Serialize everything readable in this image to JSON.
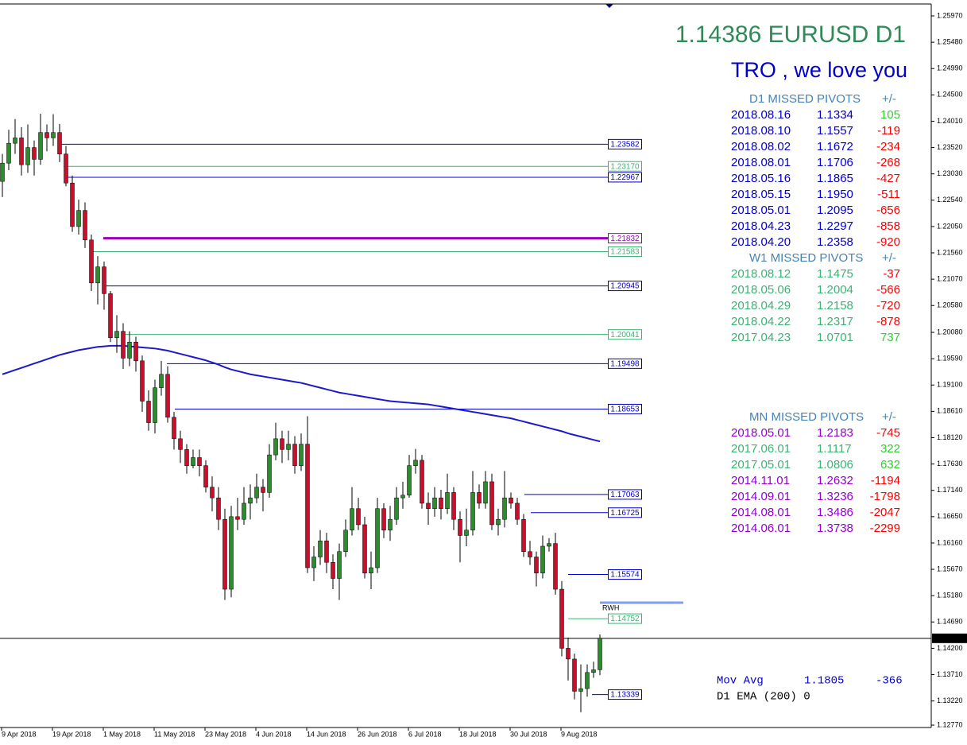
{
  "chart_data": {
    "type": "candlestick",
    "up_color": "#2e8b2e",
    "down_color": "#c8102e",
    "categories": [
      "9 Apr 2018",
      null,
      null,
      null,
      null,
      null,
      null,
      null,
      "19 Apr 2018",
      null,
      null,
      null,
      null,
      null,
      null,
      null,
      "1 May 2018",
      null,
      null,
      null,
      null,
      null,
      null,
      null,
      "11 May 2018",
      null,
      null,
      null,
      null,
      null,
      null,
      null,
      "23 May 2018",
      null,
      null,
      null,
      null,
      null,
      null,
      null,
      "4 Jun 2018",
      null,
      null,
      null,
      null,
      null,
      null,
      null,
      "14 Jun 2018",
      null,
      null,
      null,
      null,
      null,
      null,
      null,
      "26 Jun 2018",
      null,
      null,
      null,
      null,
      null,
      null,
      null,
      "6 Jul 2018",
      null,
      null,
      null,
      null,
      null,
      null,
      null,
      "18 Jul 2018",
      null,
      null,
      null,
      null,
      null,
      null,
      null,
      "30 Jul 2018",
      null,
      null,
      null,
      null,
      null,
      null,
      null,
      "9 Aug 2018",
      null,
      null,
      null,
      null,
      null,
      null
    ],
    "open": [
      1.2289,
      1.2323,
      1.236,
      1.237,
      1.232,
      1.2352,
      1.233,
      1.238,
      1.237,
      1.238,
      1.234,
      1.2286,
      1.2205,
      1.2235,
      1.218,
      1.21,
      1.213,
      1.208,
      1.1998,
      1.201,
      1.196,
      1.199,
      1.1955,
      1.188,
      1.184,
      1.1905,
      1.193,
      1.185,
      1.181,
      1.179,
      1.176,
      1.1775,
      1.176,
      1.172,
      1.17,
      1.166,
      1.153,
      1.1665,
      1.166,
      1.169,
      1.17,
      1.172,
      1.171,
      1.178,
      1.181,
      1.179,
      1.18,
      1.176,
      1.18,
      1.157,
      1.159,
      1.162,
      1.158,
      1.155,
      1.16,
      1.164,
      1.168,
      1.165,
      1.156,
      1.157,
      1.168,
      1.164,
      1.166,
      1.17,
      1.1705,
      1.176,
      1.177,
      1.169,
      1.168,
      1.17,
      1.168,
      1.171,
      1.166,
      1.163,
      1.164,
      1.171,
      1.169,
      1.173,
      1.165,
      1.166,
      1.17,
      1.169,
      1.166,
      1.16,
      1.159,
      1.156,
      1.161,
      1.1615,
      1.153,
      1.142,
      1.14,
      1.134,
      1.1345,
      1.1375,
      1.138
    ],
    "high": [
      1.234,
      1.2385,
      1.2405,
      1.239,
      1.2395,
      1.2365,
      1.2415,
      1.2395,
      1.2414,
      1.2396,
      1.2355,
      1.23,
      1.2255,
      1.225,
      1.219,
      1.215,
      1.214,
      1.2085,
      1.204,
      1.2025,
      1.201,
      1.2,
      1.1965,
      1.19,
      1.192,
      1.1955,
      1.1945,
      1.186,
      1.1825,
      1.18,
      1.179,
      1.179,
      1.177,
      1.174,
      1.172,
      1.168,
      1.1685,
      1.17,
      1.172,
      1.1725,
      1.1745,
      1.1735,
      1.18,
      1.184,
      1.1825,
      1.1825,
      1.1815,
      1.182,
      1.1852,
      1.161,
      1.164,
      1.1635,
      1.1595,
      1.1615,
      1.166,
      1.172,
      1.17,
      1.1665,
      1.16,
      1.17,
      1.169,
      1.1685,
      1.172,
      1.173,
      1.178,
      1.1791,
      1.178,
      1.171,
      1.172,
      1.1715,
      1.1745,
      1.172,
      1.1675,
      1.168,
      1.175,
      1.1725,
      1.175,
      1.1745,
      1.168,
      1.175,
      1.171,
      1.17,
      1.167,
      1.162,
      1.16,
      1.163,
      1.1625,
      1.1635,
      1.1545,
      1.144,
      1.141,
      1.139,
      1.139,
      1.1395,
      1.1446
    ],
    "low": [
      1.226,
      1.231,
      1.234,
      1.23,
      1.2305,
      1.23,
      1.232,
      1.2345,
      1.2355,
      1.2325,
      1.228,
      1.2195,
      1.219,
      1.2165,
      1.2085,
      1.206,
      1.205,
      1.199,
      1.197,
      1.194,
      1.1945,
      1.1935,
      1.186,
      1.1825,
      1.182,
      1.189,
      1.184,
      1.179,
      1.1765,
      1.1745,
      1.1755,
      1.174,
      1.171,
      1.1675,
      1.164,
      1.151,
      1.1515,
      1.164,
      1.165,
      1.166,
      1.169,
      1.1675,
      1.17,
      1.177,
      1.1765,
      1.177,
      1.1745,
      1.175,
      1.156,
      1.1545,
      1.1575,
      1.156,
      1.153,
      1.151,
      1.159,
      1.163,
      1.164,
      1.155,
      1.153,
      1.156,
      1.1625,
      1.162,
      1.165,
      1.168,
      1.17,
      1.1745,
      1.168,
      1.165,
      1.1665,
      1.166,
      1.167,
      1.164,
      1.158,
      1.161,
      1.163,
      1.168,
      1.168,
      1.164,
      1.163,
      1.1645,
      1.168,
      1.165,
      1.159,
      1.1575,
      1.1535,
      1.155,
      1.16,
      1.152,
      1.1405,
      1.136,
      1.1325,
      1.1301,
      1.133,
      1.1365,
      1.137
    ],
    "close": [
      1.2323,
      1.236,
      1.237,
      1.232,
      1.2352,
      1.233,
      1.238,
      1.237,
      1.238,
      1.234,
      1.2286,
      1.2205,
      1.2235,
      1.218,
      1.21,
      1.213,
      1.208,
      1.1998,
      1.201,
      1.196,
      1.199,
      1.1955,
      1.188,
      1.184,
      1.1905,
      1.193,
      1.185,
      1.181,
      1.179,
      1.176,
      1.1775,
      1.176,
      1.172,
      1.17,
      1.166,
      1.153,
      1.1665,
      1.166,
      1.169,
      1.17,
      1.172,
      1.171,
      1.178,
      1.181,
      1.179,
      1.18,
      1.176,
      1.18,
      1.157,
      1.159,
      1.162,
      1.158,
      1.155,
      1.16,
      1.164,
      1.168,
      1.165,
      1.156,
      1.157,
      1.168,
      1.164,
      1.166,
      1.17,
      1.1705,
      1.176,
      1.177,
      1.169,
      1.168,
      1.17,
      1.168,
      1.171,
      1.166,
      1.163,
      1.164,
      1.171,
      1.169,
      1.173,
      1.165,
      1.166,
      1.17,
      1.169,
      1.166,
      1.16,
      1.159,
      1.156,
      1.161,
      1.1615,
      1.153,
      1.142,
      1.14,
      1.134,
      1.1345,
      1.1375,
      1.138,
      1.1439
    ],
    "ma": {
      "color": "#1a1acc",
      "values": [
        1.193,
        1.1934,
        1.1938,
        1.1942,
        1.1946,
        1.195,
        1.1954,
        1.1958,
        1.1962,
        1.1966,
        1.1969,
        1.1972,
        1.1975,
        1.1977,
        1.1979,
        1.1981,
        1.1982,
        1.1983,
        1.1983,
        1.1983,
        1.1982,
        1.1981,
        1.198,
        1.1979,
        1.1978,
        1.1976,
        1.1974,
        1.1971,
        1.1968,
        1.1965,
        1.1962,
        1.1959,
        1.1956,
        1.1952,
        1.1948,
        1.1943,
        1.1939,
        1.1936,
        1.1933,
        1.193,
        1.1928,
        1.1926,
        1.1924,
        1.1922,
        1.192,
        1.1918,
        1.1916,
        1.1914,
        1.1911,
        1.1908,
        1.1905,
        1.1902,
        1.1899,
        1.1896,
        1.1894,
        1.1892,
        1.189,
        1.1888,
        1.1886,
        1.1884,
        1.1882,
        1.188,
        1.1879,
        1.1878,
        1.1877,
        1.1876,
        1.1875,
        1.1874,
        1.1872,
        1.187,
        1.1868,
        1.1866,
        1.1864,
        1.1862,
        1.186,
        1.1858,
        1.1856,
        1.1854,
        1.1852,
        1.185,
        1.1848,
        1.1845,
        1.1842,
        1.1839,
        1.1836,
        1.1833,
        1.183,
        1.1827,
        1.1824,
        1.182,
        1.1817,
        1.1814,
        1.1811,
        1.1808,
        1.1805
      ]
    },
    "ylim": [
      1.12726,
      1.26192
    ],
    "yticks": [
      {
        "value": 1.2597,
        "label": "1.25970"
      },
      {
        "value": 1.2548,
        "label": "1.25480"
      },
      {
        "value": 1.2499,
        "label": "1.24990"
      },
      {
        "value": 1.245,
        "label": "1.24500"
      },
      {
        "value": 1.2401,
        "label": "1.24010"
      },
      {
        "value": 1.2352,
        "label": "1.23520"
      },
      {
        "value": 1.2303,
        "label": "1.23030"
      },
      {
        "value": 1.2254,
        "label": "1.22540"
      },
      {
        "value": 1.2205,
        "label": "1.22050"
      },
      {
        "value": 1.2156,
        "label": "1.21560"
      },
      {
        "value": 1.2107,
        "label": "1.21070"
      },
      {
        "value": 1.2058,
        "label": "1.20580"
      },
      {
        "value": 1.2008,
        "label": "1.20080"
      },
      {
        "value": 1.1959,
        "label": "1.19590"
      },
      {
        "value": 1.191,
        "label": "1.19100"
      },
      {
        "value": 1.1861,
        "label": "1.18610"
      },
      {
        "value": 1.1812,
        "label": "1.18120"
      },
      {
        "value": 1.1763,
        "label": "1.17630"
      },
      {
        "value": 1.1714,
        "label": "1.17140"
      },
      {
        "value": 1.1665,
        "label": "1.16650"
      },
      {
        "value": 1.1616,
        "label": "1.16160"
      },
      {
        "value": 1.1567,
        "label": "1.15670"
      },
      {
        "value": 1.1518,
        "label": "1.15180"
      },
      {
        "value": 1.1469,
        "label": "1.14690"
      },
      {
        "value": 1.142,
        "label": "1.14200"
      },
      {
        "value": 1.1371,
        "label": "1.13710"
      },
      {
        "value": 1.1322,
        "label": "1.13220"
      },
      {
        "value": 1.1277,
        "label": "1.12770"
      }
    ],
    "levels": [
      {
        "value": 1.23582,
        "color": "#0000cc"
      },
      {
        "value": 1.2317,
        "label": "1.23170",
        "color": "#3cb371"
      },
      {
        "value": 1.22967,
        "color": "#0000cc"
      },
      {
        "value": 1.21832,
        "color": "#9900bb",
        "thick": true
      },
      {
        "value": 1.21583,
        "color": "#3cb371"
      },
      {
        "value": 1.20945,
        "color": "#0000cc"
      },
      {
        "value": 1.20041,
        "color": "#3cb371"
      },
      {
        "value": 1.19498,
        "color": "#0000cc"
      },
      {
        "value": 1.18653,
        "color": "#0000cc"
      },
      {
        "value": 1.17063,
        "color": "#0000cc"
      },
      {
        "value": 1.16725,
        "color": "#0000cc"
      },
      {
        "value": 1.15574,
        "color": "#0000cc"
      },
      {
        "value": 1.14752,
        "color": "#3cb371"
      },
      {
        "value": 1.13339,
        "color": "#0000cc"
      }
    ],
    "rwh": {
      "label": "RWH",
      "value": 1.1505,
      "color": "#7f9fef"
    },
    "current_price": 1.14386
  },
  "panel": {
    "title": "1.14386 EURUSD D1",
    "title_color": "#2e8b57",
    "subtitle": "TRO , we love you",
    "subtitle_color": "#0000cc",
    "heading_color": "#4682b4",
    "positive_color": "#32cd32",
    "negative_color": "#ff0000",
    "sections": [
      {
        "heading": "D1 MISSED PIVOTS",
        "diff_heading": "+/-",
        "colors": [
          "#0000cc",
          "#0000cc",
          "#0000cc",
          "#0000cc",
          "#0000cc",
          "#0000cc",
          "#0000cc",
          "#0000cc",
          "#0000cc"
        ],
        "rows": [
          [
            "2018.08.16",
            "1.1334",
            105
          ],
          [
            "2018.08.10",
            "1.1557",
            -119
          ],
          [
            "2018.08.02",
            "1.1672",
            -234
          ],
          [
            "2018.08.01",
            "1.1706",
            -268
          ],
          [
            "2018.05.16",
            "1.1865",
            -427
          ],
          [
            "2018.05.15",
            "1.1950",
            -511
          ],
          [
            "2018.05.01",
            "1.2095",
            -656
          ],
          [
            "2018.04.23",
            "1.2297",
            -858
          ],
          [
            "2018.04.20",
            "1.2358",
            -920
          ]
        ]
      },
      {
        "heading": "W1 MISSED PIVOTS",
        "diff_heading": "+/-",
        "colors": [
          "#3cb371",
          "#3cb371",
          "#3cb371",
          "#3cb371",
          "#3cb371"
        ],
        "rows": [
          [
            "2018.08.12",
            "1.1475",
            -37
          ],
          [
            "2018.05.06",
            "1.2004",
            -566
          ],
          [
            "2018.04.29",
            "1.2158",
            -720
          ],
          [
            "2018.04.22",
            "1.2317",
            -878
          ],
          [
            "2017.04.23",
            "1.0701",
            737
          ]
        ]
      },
      {
        "heading": "MN MISSED PIVOTS",
        "diff_heading": "+/-",
        "colors": [
          "#9400d3",
          "#3cb371",
          "#3cb371",
          "#9400d3",
          "#9400d3",
          "#9400d3",
          "#9400d3"
        ],
        "rows": [
          [
            "2018.05.01",
            "1.2183",
            -745
          ],
          [
            "2017.06.01",
            "1.1117",
            322
          ],
          [
            "2017.05.01",
            "1.0806",
            632
          ],
          [
            "2014.11.01",
            "1.2632",
            -1194
          ],
          [
            "2014.09.01",
            "1.3236",
            -1798
          ],
          [
            "2014.08.01",
            "1.3486",
            -2047
          ],
          [
            "2014.06.01",
            "1.3738",
            -2299
          ]
        ]
      }
    ],
    "moving_average": {
      "label": "Mov Avg",
      "value": 1.1805,
      "diff": -366,
      "color": "#0000cc"
    },
    "ema_label": "D1 EMA (200) 0"
  }
}
